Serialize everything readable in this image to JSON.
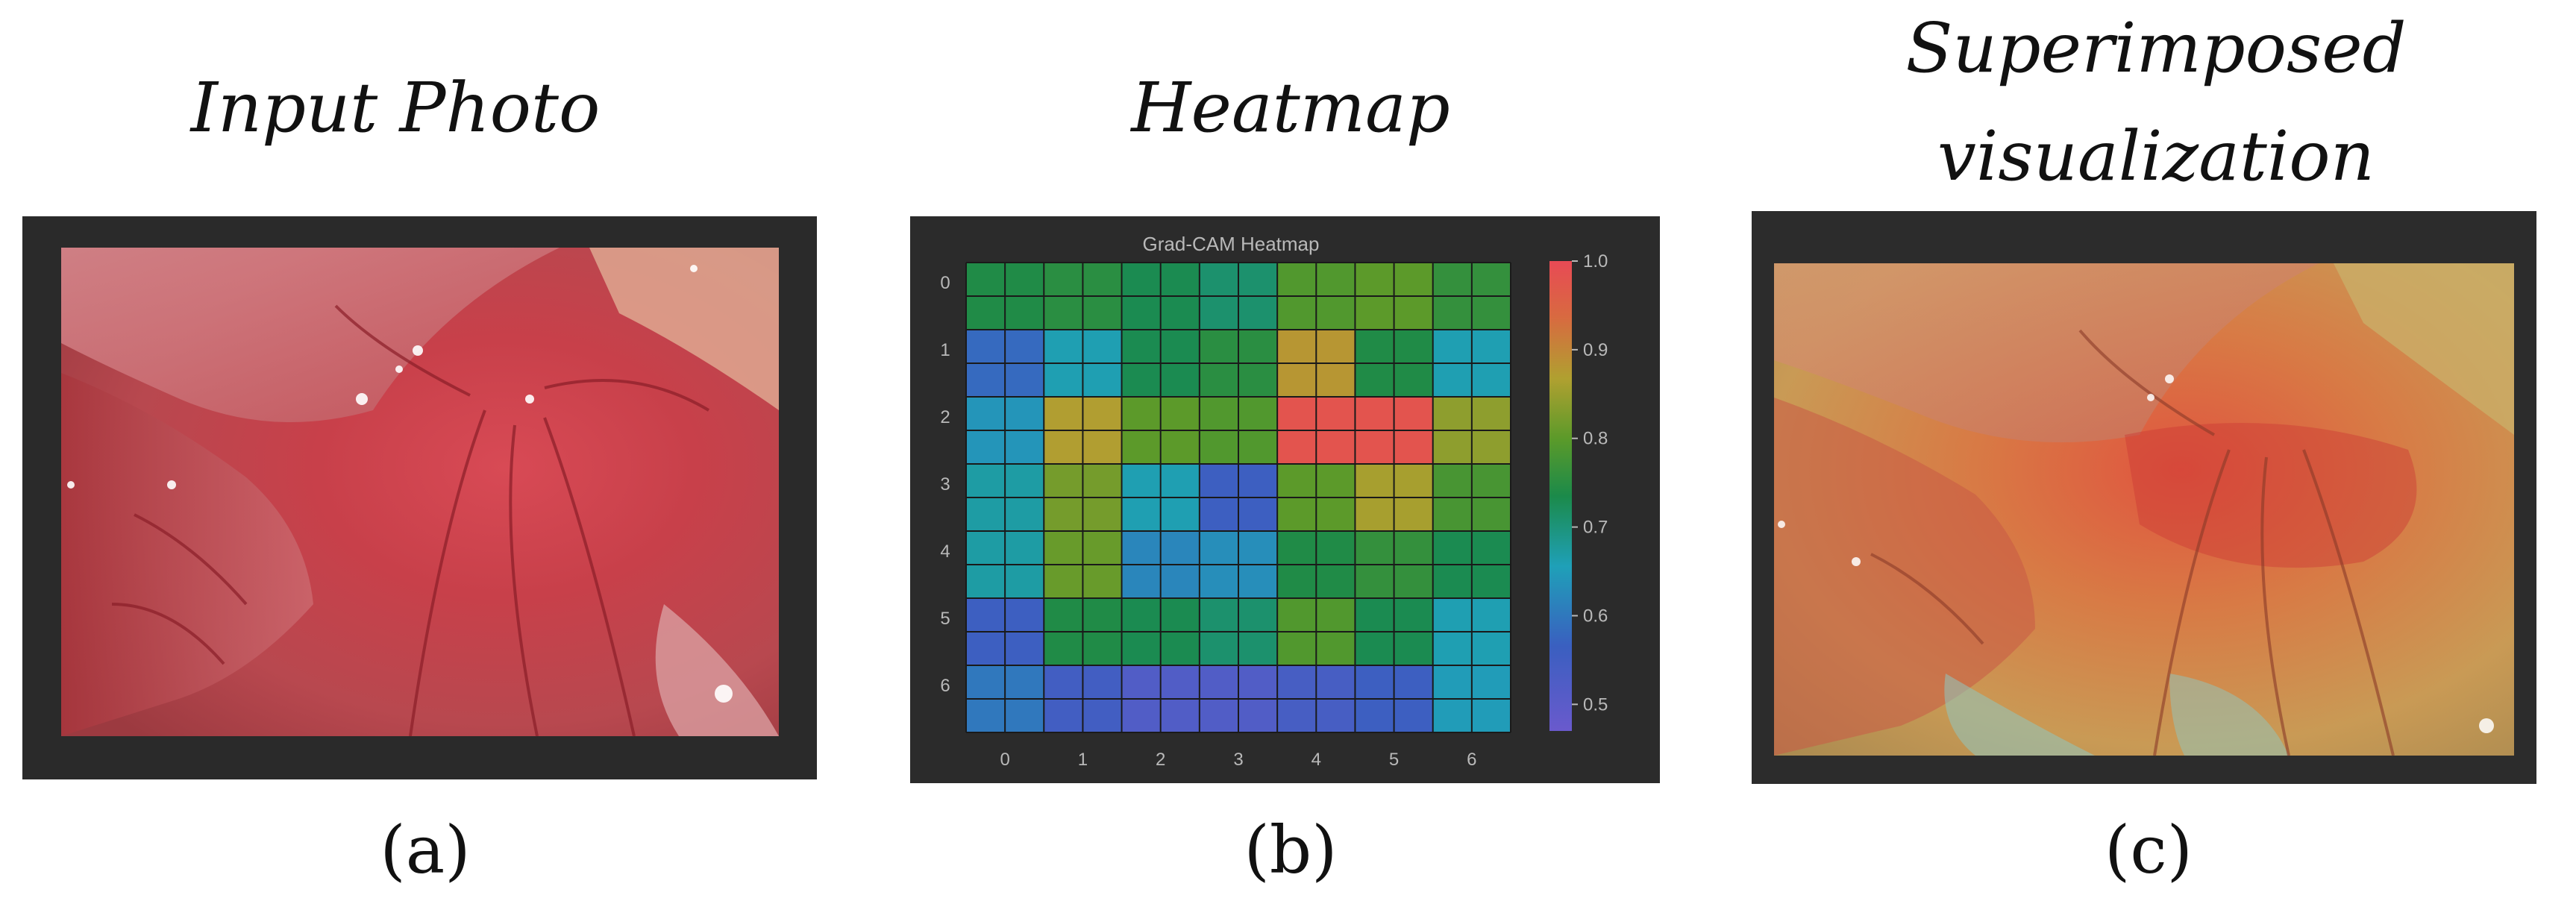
{
  "panels": {
    "a": {
      "title": "Input Photo",
      "caption": "(a)"
    },
    "b": {
      "title": "Heatmap",
      "caption": "(b)"
    },
    "c": {
      "title_line1": "Superimposed",
      "title_line2": "visualization",
      "caption": "(c)"
    }
  },
  "heatmap": {
    "title": "Grad-CAM Heatmap",
    "x_ticks": [
      "0",
      "1",
      "2",
      "3",
      "4",
      "5",
      "6"
    ],
    "y_ticks": [
      "0",
      "1",
      "2",
      "3",
      "4",
      "5",
      "6"
    ],
    "colorbar_ticks": [
      "1.0",
      "0.9",
      "0.8",
      "0.7",
      "0.6",
      "0.5"
    ],
    "colors": {
      "background": "#2b2b2b",
      "grid": "#1a1a1a",
      "frame": "#2a2a2a"
    }
  },
  "chart_data": {
    "type": "heatmap",
    "title": "Grad-CAM Heatmap",
    "x_categories": [
      "0",
      "1",
      "2",
      "3",
      "4",
      "5",
      "6"
    ],
    "y_categories": [
      "0",
      "1",
      "2",
      "3",
      "4",
      "5",
      "6"
    ],
    "colorbar_range": [
      0.47,
      1.0
    ],
    "values": [
      [
        0.74,
        0.75,
        0.73,
        0.71,
        0.79,
        0.8,
        0.76
      ],
      [
        0.58,
        0.66,
        0.73,
        0.75,
        0.88,
        0.74,
        0.66
      ],
      [
        0.64,
        0.87,
        0.8,
        0.79,
        0.98,
        0.98,
        0.84
      ],
      [
        0.67,
        0.82,
        0.66,
        0.56,
        0.8,
        0.86,
        0.78
      ],
      [
        0.67,
        0.81,
        0.62,
        0.63,
        0.74,
        0.76,
        0.73
      ],
      [
        0.56,
        0.74,
        0.73,
        0.71,
        0.79,
        0.73,
        0.66
      ],
      [
        0.6,
        0.55,
        0.52,
        0.52,
        0.54,
        0.56,
        0.65
      ]
    ]
  }
}
